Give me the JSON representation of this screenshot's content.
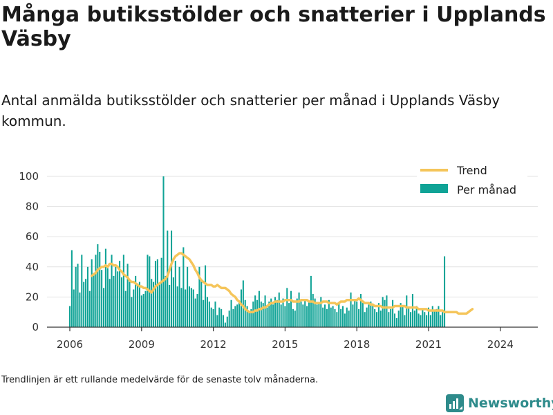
{
  "header": {
    "title": "Många butiksstölder och snatterier i Upplands Väsby",
    "subtitle": "Antal anmälda butiksstölder och snatterier per månad i Upplands Väsby kommun."
  },
  "footer": {
    "note": "Trendlinjen är ett rullande medelvärde för de senaste tolv månaderna.",
    "logo_text": "Newsworthy"
  },
  "colors": {
    "bar": "#0fa396",
    "trend": "#f5c55a",
    "axis": "#333333",
    "grid": "#e3e3e3",
    "logo": "#2e8b8b"
  },
  "chart_data": {
    "type": "bar",
    "x_start": "2006-01",
    "x_ticks": [
      "2006",
      "2009",
      "2012",
      "2015",
      "2018",
      "2021",
      "2024"
    ],
    "ylim": [
      0,
      100
    ],
    "y_ticks": [
      0,
      20,
      40,
      60,
      80,
      100
    ],
    "grid": true,
    "legend_position": "top-right",
    "series": [
      {
        "name": "Per månad",
        "type": "bar",
        "values": [
          14,
          51,
          25,
          40,
          42,
          23,
          48,
          30,
          32,
          40,
          24,
          45,
          36,
          48,
          55,
          50,
          38,
          26,
          52,
          39,
          32,
          48,
          34,
          40,
          37,
          44,
          33,
          48,
          24,
          42,
          30,
          20,
          25,
          34,
          29,
          30,
          21,
          22,
          24,
          48,
          47,
          32,
          30,
          44,
          45,
          29,
          46,
          100,
          34,
          64,
          28,
          64,
          33,
          44,
          27,
          40,
          26,
          53,
          25,
          40,
          27,
          26,
          25,
          19,
          22,
          40,
          32,
          18,
          41,
          20,
          17,
          13,
          12,
          17,
          8,
          13,
          12,
          8,
          3,
          7,
          11,
          18,
          12,
          14,
          15,
          17,
          25,
          31,
          18,
          14,
          10,
          12,
          17,
          21,
          18,
          24,
          17,
          16,
          21,
          13,
          17,
          19,
          15,
          20,
          18,
          23,
          15,
          19,
          14,
          26,
          16,
          24,
          12,
          11,
          19,
          23,
          17,
          15,
          18,
          14,
          17,
          34,
          22,
          19,
          15,
          16,
          20,
          13,
          15,
          12,
          18,
          13,
          14,
          12,
          10,
          16,
          12,
          14,
          9,
          13,
          11,
          23,
          15,
          18,
          17,
          12,
          22,
          16,
          10,
          13,
          15,
          17,
          14,
          12,
          10,
          16,
          11,
          20,
          18,
          21,
          10,
          12,
          18,
          9,
          6,
          11,
          16,
          14,
          8,
          21,
          13,
          10,
          22,
          11,
          14,
          9,
          8,
          12,
          10,
          8,
          13,
          8,
          14,
          11,
          12,
          14,
          8,
          10,
          47
        ]
      },
      {
        "name": "Trend",
        "type": "line",
        "x_start": "2006-12",
        "values": [
          34,
          35,
          36,
          38,
          39,
          40,
          40,
          41,
          40,
          42,
          42,
          41,
          41,
          40,
          38,
          37,
          35,
          34,
          33,
          31,
          30,
          30,
          29,
          28,
          27,
          27,
          26,
          26,
          25,
          24,
          23,
          25,
          27,
          28,
          29,
          30,
          31,
          32,
          34,
          38,
          42,
          45,
          47,
          48,
          49,
          49,
          48,
          47,
          46,
          45,
          43,
          41,
          38,
          36,
          33,
          31,
          30,
          29,
          28,
          28,
          28,
          27,
          27,
          28,
          27,
          26,
          26,
          26,
          25,
          24,
          22,
          21,
          20,
          18,
          17,
          15,
          14,
          12,
          11,
          10,
          10,
          10,
          11,
          11,
          12,
          12,
          13,
          13,
          14,
          15,
          16,
          16,
          17,
          17,
          17,
          17,
          17,
          18,
          18,
          18,
          18,
          17,
          17,
          17,
          17,
          18,
          18,
          18,
          18,
          17,
          17,
          17,
          16,
          16,
          16,
          16,
          17,
          17,
          17,
          16,
          16,
          16,
          16,
          15,
          16,
          17,
          17,
          17,
          18,
          18,
          18,
          18,
          18,
          18,
          19,
          18,
          17,
          16,
          16,
          16,
          15,
          15,
          14,
          14,
          14,
          14,
          13,
          13,
          13,
          13,
          13,
          13,
          14,
          14,
          14,
          14,
          14,
          14,
          13,
          13,
          13,
          13,
          13,
          13,
          12,
          12,
          12,
          12,
          12,
          11,
          11,
          11,
          11,
          11,
          11,
          11,
          11,
          10,
          10,
          10,
          10,
          10,
          10,
          10,
          9,
          9,
          9,
          9,
          9,
          10,
          11,
          12
        ]
      }
    ]
  }
}
